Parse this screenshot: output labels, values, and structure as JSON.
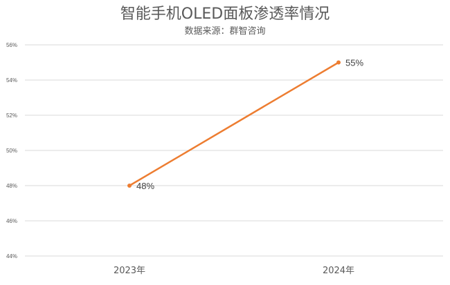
{
  "chart_data": {
    "type": "line",
    "title": "智能手机OLED面板渗透率情况",
    "subtitle": "数据来源：群智咨询",
    "categories": [
      "2023年",
      "2024年"
    ],
    "series": [
      {
        "values": [
          48,
          55
        ],
        "data_labels": [
          "48%",
          "55%"
        ]
      }
    ],
    "ylim": [
      44,
      56
    ],
    "yticks": [
      44,
      46,
      48,
      50,
      52,
      54,
      56
    ],
    "ytick_labels": [
      "44%",
      "46%",
      "48%",
      "50%",
      "52%",
      "54%",
      "56%"
    ],
    "grid": true,
    "line_color": "#ED7D31",
    "grid_color": "#D9D9D9"
  }
}
